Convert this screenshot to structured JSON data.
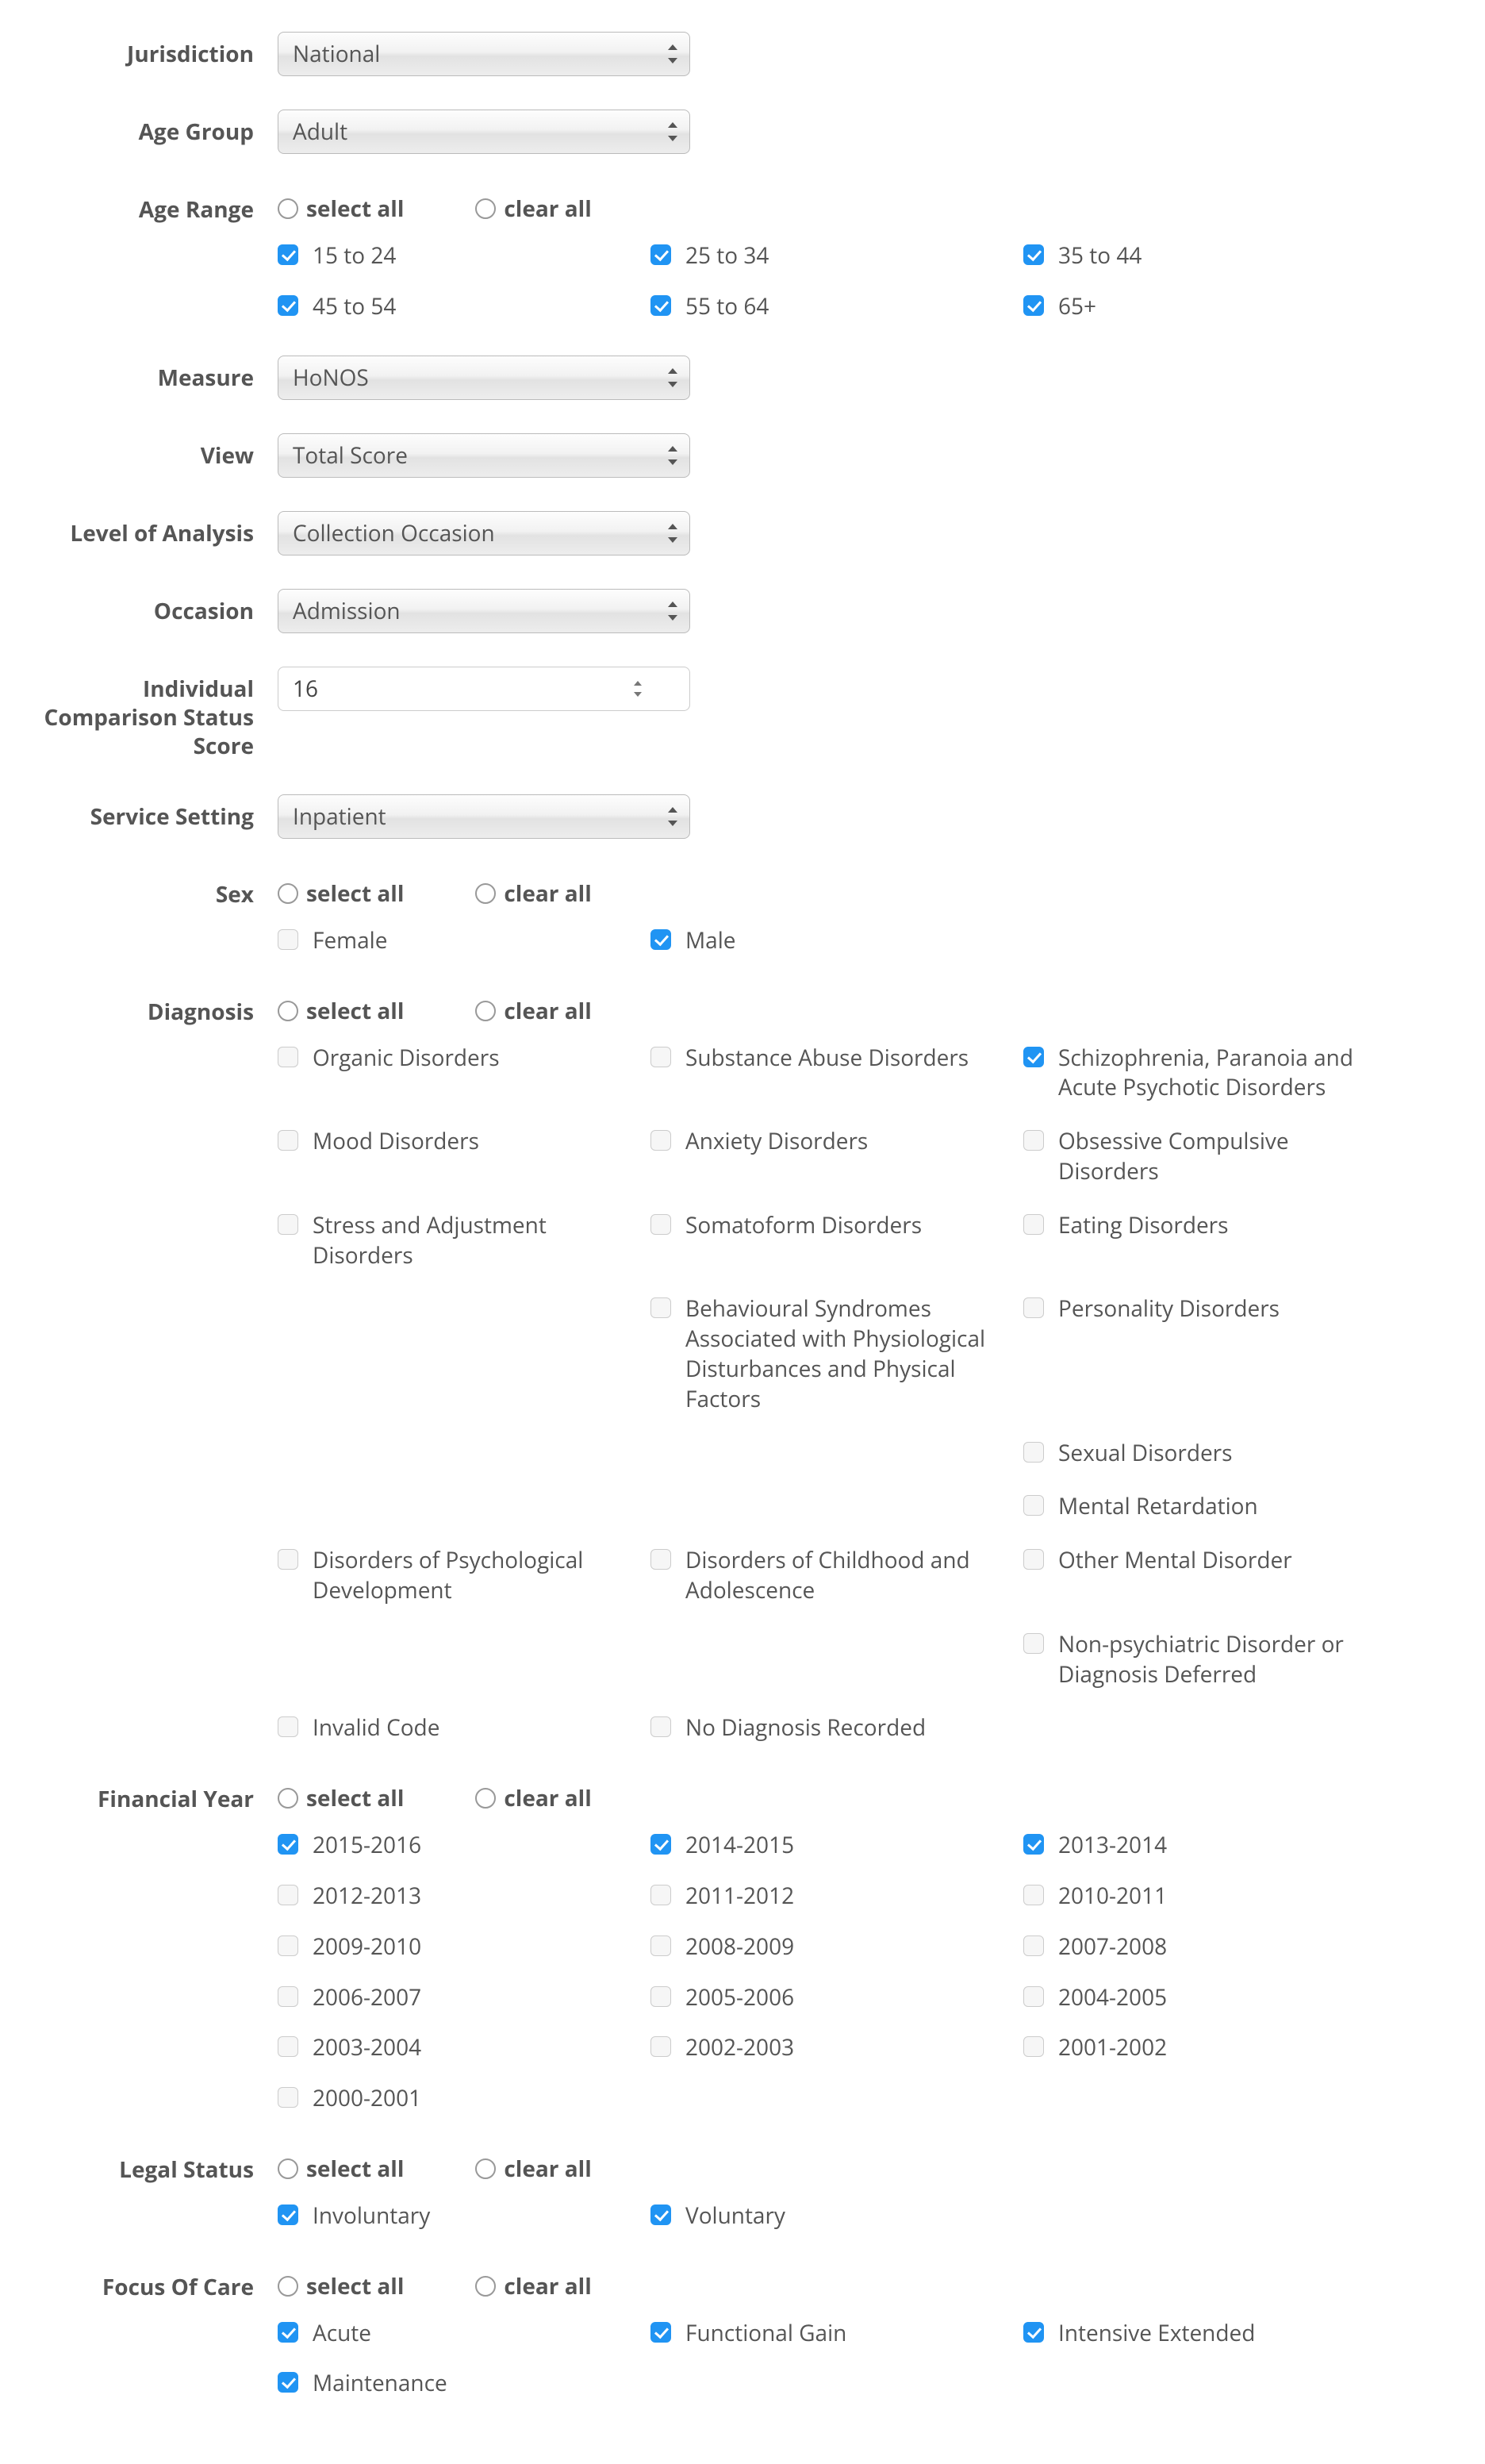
{
  "colors": {
    "text": "#555555",
    "accent": "#2094f3",
    "border": "#bbbbbb",
    "bg": "#ffffff"
  },
  "select_all_label": "select all",
  "clear_all_label": "clear all",
  "fields": {
    "jurisdiction": {
      "label": "Jurisdiction",
      "value": "National"
    },
    "age_group": {
      "label": "Age Group",
      "value": "Adult"
    },
    "measure": {
      "label": "Measure",
      "value": "HoNOS"
    },
    "view": {
      "label": "View",
      "value": "Total Score"
    },
    "level": {
      "label": "Level of Analysis",
      "value": "Collection Occasion"
    },
    "occasion": {
      "label": "Occasion",
      "value": "Admission"
    },
    "ind_comp": {
      "label": "Individual Comparison Status Score",
      "value": "16"
    },
    "service": {
      "label": "Service Setting",
      "value": "Inpatient"
    }
  },
  "age_range": {
    "label": "Age Range",
    "options": [
      {
        "label": "15 to 24",
        "checked": true
      },
      {
        "label": "25 to 34",
        "checked": true
      },
      {
        "label": "35 to 44",
        "checked": true
      },
      {
        "label": "45 to 54",
        "checked": true
      },
      {
        "label": "55 to 64",
        "checked": true
      },
      {
        "label": "65+",
        "checked": true
      }
    ]
  },
  "sex": {
    "label": "Sex",
    "options": [
      {
        "label": "Female",
        "checked": false
      },
      {
        "label": "Male",
        "checked": true
      }
    ]
  },
  "diagnosis": {
    "label": "Diagnosis",
    "options": [
      {
        "label": "Organic Disorders",
        "checked": false
      },
      {
        "label": "Substance Abuse Disorders",
        "checked": false
      },
      {
        "label": "Schizophrenia, Paranoia and Acute Psychotic Disorders",
        "checked": true
      },
      {
        "label": "Mood Disorders",
        "checked": false
      },
      {
        "label": "Anxiety Disorders",
        "checked": false
      },
      {
        "label": "Obsessive Compulsive Disorders",
        "checked": false
      },
      {
        "label": "Stress and Adjustment Disorders",
        "checked": false
      },
      {
        "label": "Somatoform Disorders",
        "checked": false
      },
      {
        "label": "Eating Disorders",
        "checked": false
      },
      {
        "label": "",
        "checked": false,
        "blank": true
      },
      {
        "label": "Behavioural Syndromes Associated with Physiological Disturbances and Physical Factors",
        "checked": false
      },
      {
        "label": "Personality Disorders",
        "checked": false
      },
      {
        "label": "",
        "checked": false,
        "blank": true
      },
      {
        "label": "",
        "checked": false,
        "blank": true
      },
      {
        "label": "Sexual Disorders",
        "checked": false
      },
      {
        "label": "",
        "checked": false,
        "blank": true
      },
      {
        "label": "",
        "checked": false,
        "blank": true
      },
      {
        "label": "Mental Retardation",
        "checked": false
      },
      {
        "label": "Disorders of Psychological Development",
        "checked": false
      },
      {
        "label": "Disorders of Childhood and Adolescence",
        "checked": false
      },
      {
        "label": "Other Mental Disorder",
        "checked": false
      },
      {
        "label": "",
        "checked": false,
        "blank": true
      },
      {
        "label": "",
        "checked": false,
        "blank": true
      },
      {
        "label": "Non-psychiatric Disorder or Diagnosis Deferred",
        "checked": false
      },
      {
        "label": "Invalid Code",
        "checked": false
      },
      {
        "label": "No Diagnosis Recorded",
        "checked": false
      }
    ]
  },
  "financial_year": {
    "label": "Financial Year",
    "options": [
      {
        "label": "2015-2016",
        "checked": true
      },
      {
        "label": "2014-2015",
        "checked": true
      },
      {
        "label": "2013-2014",
        "checked": true
      },
      {
        "label": "2012-2013",
        "checked": false
      },
      {
        "label": "2011-2012",
        "checked": false
      },
      {
        "label": "2010-2011",
        "checked": false
      },
      {
        "label": "2009-2010",
        "checked": false
      },
      {
        "label": "2008-2009",
        "checked": false
      },
      {
        "label": "2007-2008",
        "checked": false
      },
      {
        "label": "2006-2007",
        "checked": false
      },
      {
        "label": "2005-2006",
        "checked": false
      },
      {
        "label": "2004-2005",
        "checked": false
      },
      {
        "label": "2003-2004",
        "checked": false
      },
      {
        "label": "2002-2003",
        "checked": false
      },
      {
        "label": "2001-2002",
        "checked": false
      },
      {
        "label": "2000-2001",
        "checked": false
      }
    ]
  },
  "legal_status": {
    "label": "Legal Status",
    "options": [
      {
        "label": "Involuntary",
        "checked": true
      },
      {
        "label": "Voluntary",
        "checked": true
      }
    ]
  },
  "focus_of_care": {
    "label": "Focus Of Care",
    "options": [
      {
        "label": "Acute",
        "checked": true
      },
      {
        "label": "Functional Gain",
        "checked": true
      },
      {
        "label": "Intensive Extended",
        "checked": true
      },
      {
        "label": "Maintenance",
        "checked": true
      }
    ]
  }
}
